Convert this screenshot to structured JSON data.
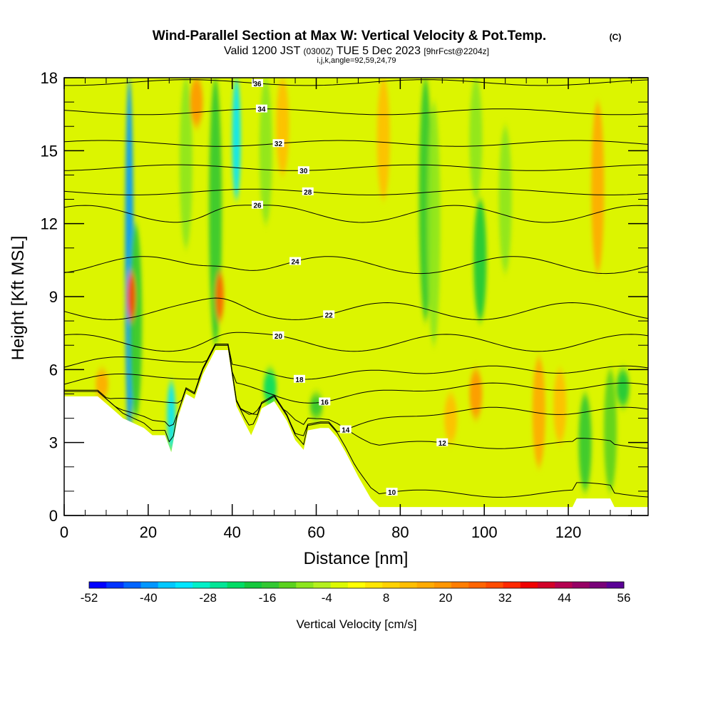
{
  "chart_data": {
    "type": "heatmap",
    "title": "Wind-Parallel Section at Max W: Vertical Velocity & Pot.Temp.",
    "title_mark": "(C)",
    "subtitle": {
      "part1": "Valid 1200 JST",
      "part2": "(0300Z)",
      "part3": "TUE 5 Dec 2023",
      "part4": "[9hrFcst@2204z]"
    },
    "subtitle2": "i,j,k,angle=92,59,24,79",
    "xlabel": "Distance [nm]",
    "ylabel": "Height [Kft MSL]",
    "xlim": [
      0,
      139
    ],
    "ylim": [
      0,
      18
    ],
    "x_ticks": [
      0,
      20,
      40,
      60,
      80,
      100,
      120
    ],
    "y_ticks": [
      0,
      3,
      6,
      9,
      12,
      15,
      18
    ],
    "colorbar": {
      "label": "Vertical Velocity [cm/s]",
      "tick_labels": [
        "-52",
        "-40",
        "-28",
        "-16",
        "-4",
        "8",
        "20",
        "32",
        "44",
        "56"
      ],
      "min": -52,
      "max": 56,
      "colors": [
        "#0000ff",
        "#0032ff",
        "#0064ff",
        "#0096ff",
        "#00c8ff",
        "#00e6ff",
        "#00f0c8",
        "#00e696",
        "#00dc64",
        "#14c83c",
        "#32c832",
        "#5ad21e",
        "#8ce61e",
        "#b4f01e",
        "#dcfa00",
        "#ffff00",
        "#ffe600",
        "#ffd200",
        "#ffbe00",
        "#ffaa00",
        "#ff9600",
        "#ff7d00",
        "#ff6400",
        "#ff4b00",
        "#ff2800",
        "#f00000",
        "#d20028",
        "#b40050",
        "#960064",
        "#780078",
        "#5a0096"
      ]
    },
    "vertical_velocity_bands": [
      {
        "x": 15.5,
        "top": 18,
        "bottom": 3,
        "w": -40
      },
      {
        "x": 17,
        "top": 12,
        "bottom": 4,
        "w": -16
      },
      {
        "x": 25.5,
        "top": 5.5,
        "bottom": 2.6,
        "w": -34
      },
      {
        "x": 29,
        "top": 18,
        "bottom": 11,
        "w": -10
      },
      {
        "x": 36,
        "top": 18,
        "bottom": 7,
        "w": -16
      },
      {
        "x": 41,
        "top": 18,
        "bottom": 13,
        "w": -34
      },
      {
        "x": 48,
        "top": 18,
        "bottom": 12,
        "w": -8
      },
      {
        "x": 49,
        "top": 6,
        "bottom": 4.5,
        "w": -22
      },
      {
        "x": 60,
        "top": 5,
        "bottom": 4,
        "w": -16
      },
      {
        "x": 86,
        "top": 18,
        "bottom": 8,
        "w": -16
      },
      {
        "x": 88,
        "top": 17,
        "bottom": 7,
        "w": -10
      },
      {
        "x": 99,
        "top": 13,
        "bottom": 8,
        "w": -20
      },
      {
        "x": 98,
        "top": 18,
        "bottom": 13,
        "w": -10
      },
      {
        "x": 105,
        "top": 16,
        "bottom": 10,
        "w": -10
      },
      {
        "x": 124,
        "top": 5,
        "bottom": 1,
        "w": -16
      },
      {
        "x": 130,
        "top": 6,
        "bottom": 1,
        "w": -14
      },
      {
        "x": 133,
        "top": 6,
        "bottom": 4.5,
        "w": -18
      },
      {
        "x": 16,
        "top": 10,
        "bottom": 8,
        "w": 32
      },
      {
        "x": 37,
        "top": 10,
        "bottom": 8,
        "w": 28
      },
      {
        "x": 31.5,
        "top": 18,
        "bottom": 16,
        "w": 20
      },
      {
        "x": 9,
        "top": 6,
        "bottom": 4.8,
        "w": 16
      },
      {
        "x": 98,
        "top": 6,
        "bottom": 4,
        "w": 20
      },
      {
        "x": 92,
        "top": 5,
        "bottom": 3,
        "w": 14
      },
      {
        "x": 113,
        "top": 6.5,
        "bottom": 2,
        "w": 18
      },
      {
        "x": 118,
        "top": 6,
        "bottom": 3,
        "w": 14
      },
      {
        "x": 127,
        "top": 17,
        "bottom": 10,
        "w": 16
      },
      {
        "x": 52,
        "top": 18,
        "bottom": 14,
        "w": 14
      },
      {
        "x": 76,
        "top": 18,
        "bottom": 13,
        "w": 12
      }
    ],
    "terrain": [
      [
        0,
        4.9
      ],
      [
        8,
        4.9
      ],
      [
        12,
        4.3
      ],
      [
        14,
        4.0
      ],
      [
        19,
        3.6
      ],
      [
        21,
        3.3
      ],
      [
        24,
        3.3
      ],
      [
        25.5,
        2.6
      ],
      [
        27,
        4.0
      ],
      [
        29,
        5.0
      ],
      [
        31,
        4.8
      ],
      [
        33,
        5.8
      ],
      [
        36,
        6.8
      ],
      [
        39,
        6.8
      ],
      [
        41,
        4.5
      ],
      [
        43,
        3.8
      ],
      [
        44.5,
        3.3
      ],
      [
        46,
        3.9
      ],
      [
        47,
        4.4
      ],
      [
        48,
        4.5
      ],
      [
        50,
        4.7
      ],
      [
        53,
        3.9
      ],
      [
        55,
        3.1
      ],
      [
        57,
        2.7
      ],
      [
        58,
        3.5
      ],
      [
        61,
        3.6
      ],
      [
        63,
        3.6
      ],
      [
        65,
        3.2
      ],
      [
        67,
        2.6
      ],
      [
        70,
        1.6
      ],
      [
        73,
        0.7
      ],
      [
        75,
        0.35
      ],
      [
        90,
        0.35
      ],
      [
        110,
        0.35
      ],
      [
        121,
        0.35
      ],
      [
        122,
        0.7
      ],
      [
        130,
        0.7
      ],
      [
        131,
        0.35
      ],
      [
        139,
        0.35
      ]
    ],
    "theta_contours": [
      {
        "level": 10,
        "base": 0.9,
        "mode": "terrain",
        "label_x": 78
      },
      {
        "level": 12,
        "base": 2.9,
        "mode": "terrain",
        "label_x": 90
      },
      {
        "level": 14,
        "base": 4.3,
        "mode": "valley",
        "dip": 1.0,
        "label_x": 67
      },
      {
        "level": 16,
        "base": 5.3,
        "mode": "valley",
        "dip": 0.6,
        "label_x": 62
      },
      {
        "level": 18,
        "base": 6.0,
        "mode": "valley",
        "dip": 0.3,
        "label_x": 56
      },
      {
        "level": 20,
        "base": 7.1,
        "mode": "wavy",
        "label_x": 51
      },
      {
        "level": 22,
        "base": 8.4,
        "mode": "wavy",
        "label_x": 63
      },
      {
        "level": 24,
        "base": 10.3,
        "mode": "wavy",
        "label_x": 55
      },
      {
        "level": 26,
        "base": 12.4,
        "mode": "wavy",
        "label_x": 46
      },
      {
        "level": 28,
        "base": 13.3,
        "mode": "flat",
        "label_x": 58
      },
      {
        "level": 30,
        "base": 14.3,
        "mode": "flat",
        "label_x": 57
      },
      {
        "level": 32,
        "base": 15.3,
        "mode": "flat",
        "label_x": 51
      },
      {
        "level": 34,
        "base": 16.6,
        "mode": "flat",
        "label_x": 47
      },
      {
        "level": 36,
        "base": 17.8,
        "mode": "flat",
        "label_x": 46
      }
    ]
  }
}
